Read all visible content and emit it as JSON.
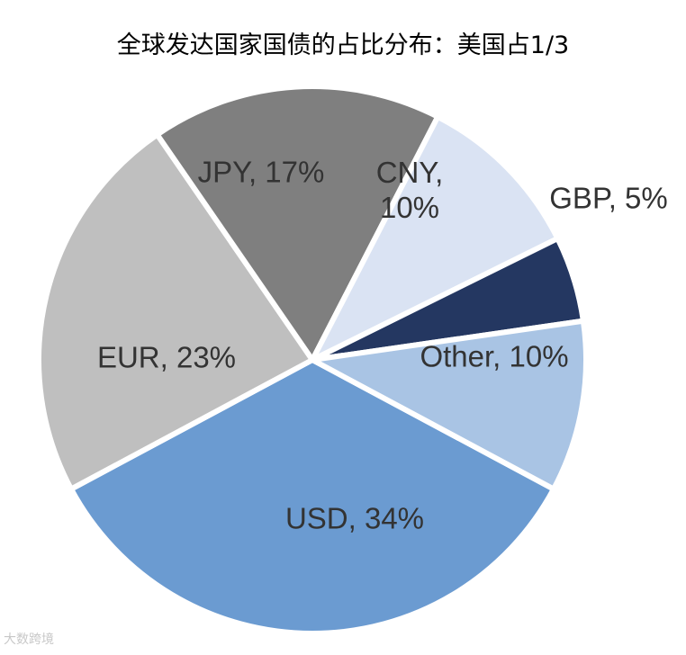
{
  "chart_data": {
    "type": "pie",
    "title": "全球发达国家国债的占比分布：美国占1/3",
    "slices": [
      {
        "label": "USD, 34%",
        "value": 34,
        "color": "#6b9bd1"
      },
      {
        "label": "EUR, 23%",
        "value": 23,
        "color": "#bfbfbf"
      },
      {
        "label": "JPY, 17%",
        "value": 17,
        "color": "#7f7f7f"
      },
      {
        "label": "CNY, 10%",
        "value": 10,
        "color": "#dae3f3"
      },
      {
        "label": "GBP, 5%",
        "value": 5,
        "color": "#243761"
      },
      {
        "label": "Other, 10%",
        "value": 10,
        "color": "#a9c4e4"
      }
    ]
  },
  "watermark": "大数跨境"
}
